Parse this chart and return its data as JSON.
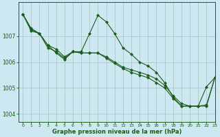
{
  "bg_color": "#cde8f0",
  "line_color": "#1a5c1a",
  "grid_color": "#a8c8cc",
  "axis_color": "#1a5c1a",
  "xlabel": "Graphe pression niveau de la mer (hPa)",
  "ylim": [
    1003.7,
    1008.3
  ],
  "xlim": [
    -0.5,
    23
  ],
  "yticks": [
    1004,
    1005,
    1006,
    1007
  ],
  "xticks": [
    0,
    1,
    2,
    3,
    4,
    5,
    6,
    7,
    8,
    9,
    10,
    11,
    12,
    13,
    14,
    15,
    16,
    17,
    18,
    19,
    20,
    21,
    22,
    23
  ],
  "series1": [
    1007.85,
    1007.3,
    1007.1,
    1006.65,
    1006.5,
    1006.2,
    1006.4,
    1006.4,
    1007.1,
    1007.8,
    1007.55,
    1007.1,
    1006.55,
    1006.3,
    1006.0,
    1005.85,
    1005.6,
    1005.2,
    1004.65,
    1004.3,
    1004.3,
    1004.3,
    1005.05,
    1005.4
  ],
  "series2": [
    1007.85,
    1007.25,
    1007.1,
    1006.55,
    1006.4,
    1006.15,
    1006.4,
    1006.35,
    1006.35,
    1006.35,
    1006.2,
    1006.0,
    1005.8,
    1005.7,
    1005.6,
    1005.5,
    1005.35,
    1005.1,
    1004.7,
    1004.4,
    1004.3,
    1004.3,
    1004.35,
    1005.4
  ],
  "series3": [
    1007.85,
    1007.2,
    1007.1,
    1006.65,
    1006.35,
    1006.1,
    1006.4,
    1006.35,
    1006.35,
    1006.35,
    1006.15,
    1005.95,
    1005.75,
    1005.6,
    1005.5,
    1005.4,
    1005.2,
    1005.0,
    1004.6,
    1004.3,
    1004.3,
    1004.3,
    1004.3,
    1005.4
  ]
}
